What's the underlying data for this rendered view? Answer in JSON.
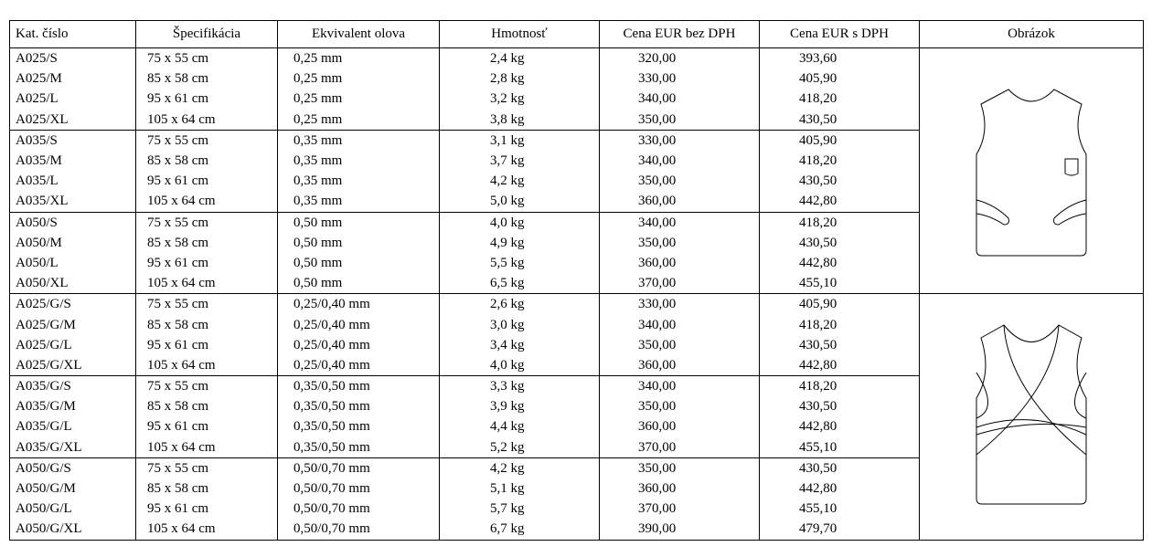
{
  "table": {
    "headers": [
      "Kat. číslo",
      "Špecifikácia",
      "Ekvivalent olova",
      "Hmotnosť",
      "Cena EUR bez DPH",
      "Cena EUR s DPH",
      "Obrázok"
    ],
    "rows": [
      [
        "A025/S",
        "75 x 55 cm",
        "0,25 mm",
        "2,4 kg",
        "320,00",
        "393,60"
      ],
      [
        "A025/M",
        "85 x 58 cm",
        "0,25 mm",
        "2,8 kg",
        "330,00",
        "405,90"
      ],
      [
        "A025/L",
        "95 x 61 cm",
        "0,25 mm",
        "3,2 kg",
        "340,00",
        "418,20"
      ],
      [
        "A025/XL",
        "105 x 64 cm",
        "0,25 mm",
        "3,8 kg",
        "350,00",
        "430,50"
      ],
      [
        "A035/S",
        "75 x 55 cm",
        "0,35 mm",
        "3,1 kg",
        "330,00",
        "405,90"
      ],
      [
        "A035/M",
        "85 x 58 cm",
        "0,35 mm",
        "3,7 kg",
        "340,00",
        "418,20"
      ],
      [
        "A035/L",
        "95 x 61 cm",
        "0,35 mm",
        "4,2 kg",
        "350,00",
        "430,50"
      ],
      [
        "A035/XL",
        "105 x 64 cm",
        "0,35 mm",
        "5,0 kg",
        "360,00",
        "442,80"
      ],
      [
        "A050/S",
        "75 x 55 cm",
        "0,50 mm",
        "4,0 kg",
        "340,00",
        "418,20"
      ],
      [
        "A050/M",
        "85 x 58 cm",
        "0,50 mm",
        "4,9 kg",
        "350,00",
        "430,50"
      ],
      [
        "A050/L",
        "95 x 61 cm",
        "0,50 mm",
        "5,5 kg",
        "360,00",
        "442,80"
      ],
      [
        "A050/XL",
        "105 x 64 cm",
        "0,50 mm",
        "6,5 kg",
        "370,00",
        "455,10"
      ],
      [
        "A025/G/S",
        "75 x 55 cm",
        "0,25/0,40 mm",
        "2,6 kg",
        "330,00",
        "405,90"
      ],
      [
        "A025/G/M",
        "85 x 58 cm",
        "0,25/0,40 mm",
        "3,0 kg",
        "340,00",
        "418,20"
      ],
      [
        "A025/G/L",
        "95 x 61 cm",
        "0,25/0,40 mm",
        "3,4 kg",
        "350,00",
        "430,50"
      ],
      [
        "A025/G/XL",
        "105 x 64 cm",
        "0,25/0,40 mm",
        "4,0 kg",
        "360,00",
        "442,80"
      ],
      [
        "A035/G/S",
        "75 x 55 cm",
        "0,35/0,50 mm",
        "3,3 kg",
        "340,00",
        "418,20"
      ],
      [
        "A035/G/M",
        "85 x 58 cm",
        "0,35/0,50 mm",
        "3,9 kg",
        "350,00",
        "430,50"
      ],
      [
        "A035/G/L",
        "95 x 61 cm",
        "0,35/0,50 mm",
        "4,4 kg",
        "360,00",
        "442,80"
      ],
      [
        "A035/G/XL",
        "105 x 64 cm",
        "0,35/0,50 mm",
        "5,2 kg",
        "370,00",
        "455,10"
      ],
      [
        "A050/G/S",
        "75 x 55 cm",
        "0,50/0,70 mm",
        "4,2 kg",
        "350,00",
        "430,50"
      ],
      [
        "A050/G/M",
        "85 x 58 cm",
        "0,50/0,70 mm",
        "5,1 kg",
        "360,00",
        "442,80"
      ],
      [
        "A050/G/L",
        "95 x 61 cm",
        "0,50/0,70 mm",
        "5,7 kg",
        "370,00",
        "455,10"
      ],
      [
        "A050/G/XL",
        "105 x 64 cm",
        "0,50/0,70 mm",
        "6,7 kg",
        "390,00",
        "479,70"
      ]
    ]
  }
}
